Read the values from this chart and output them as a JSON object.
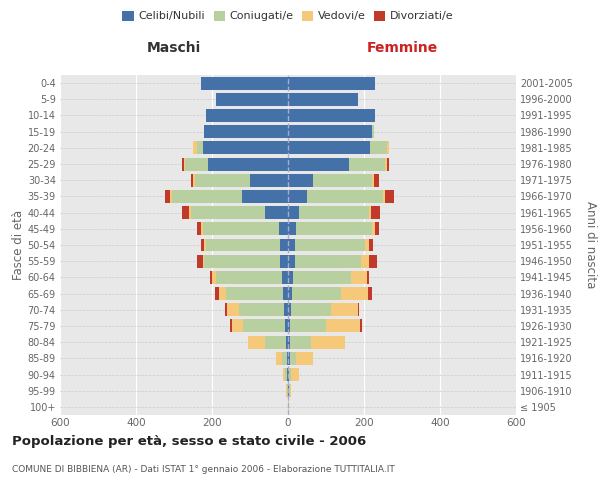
{
  "age_groups": [
    "100+",
    "95-99",
    "90-94",
    "85-89",
    "80-84",
    "75-79",
    "70-74",
    "65-69",
    "60-64",
    "55-59",
    "50-54",
    "45-49",
    "40-44",
    "35-39",
    "30-34",
    "25-29",
    "20-24",
    "15-19",
    "10-14",
    "5-9",
    "0-4"
  ],
  "birth_years": [
    "≤ 1905",
    "1906-1910",
    "1911-1915",
    "1916-1920",
    "1921-1925",
    "1926-1930",
    "1931-1935",
    "1936-1940",
    "1941-1945",
    "1946-1950",
    "1951-1955",
    "1956-1960",
    "1961-1965",
    "1966-1970",
    "1971-1975",
    "1976-1980",
    "1981-1985",
    "1986-1990",
    "1991-1995",
    "1996-2000",
    "2001-2005"
  ],
  "males": {
    "celibi": [
      0,
      1,
      2,
      2,
      5,
      8,
      10,
      12,
      15,
      20,
      20,
      25,
      60,
      120,
      100,
      210,
      225,
      220,
      215,
      190,
      230
    ],
    "coniugati": [
      0,
      2,
      5,
      15,
      55,
      110,
      120,
      150,
      175,
      200,
      195,
      200,
      195,
      185,
      145,
      60,
      15,
      0,
      0,
      0,
      0
    ],
    "vedovi": [
      0,
      1,
      5,
      15,
      45,
      30,
      30,
      20,
      10,
      5,
      5,
      5,
      5,
      5,
      5,
      5,
      10,
      0,
      0,
      0,
      0
    ],
    "divorziati": [
      0,
      0,
      0,
      0,
      0,
      5,
      5,
      10,
      5,
      15,
      10,
      10,
      20,
      15,
      5,
      5,
      0,
      0,
      0,
      0,
      0
    ]
  },
  "females": {
    "nubili": [
      1,
      3,
      3,
      5,
      5,
      5,
      8,
      10,
      12,
      18,
      18,
      22,
      28,
      50,
      65,
      160,
      215,
      220,
      230,
      185,
      230
    ],
    "coniugate": [
      0,
      1,
      5,
      15,
      55,
      95,
      105,
      130,
      155,
      175,
      185,
      200,
      185,
      200,
      155,
      95,
      45,
      5,
      0,
      0,
      0
    ],
    "vedove": [
      1,
      5,
      20,
      45,
      90,
      90,
      70,
      70,
      40,
      20,
      10,
      8,
      5,
      5,
      5,
      5,
      5,
      0,
      0,
      0,
      0
    ],
    "divorziate": [
      0,
      0,
      0,
      0,
      0,
      5,
      5,
      10,
      5,
      20,
      10,
      10,
      25,
      25,
      15,
      5,
      0,
      0,
      0,
      0,
      0
    ]
  },
  "colors": {
    "celibi": "#4472a8",
    "coniugati": "#b8cfa0",
    "vedovi": "#f5c87a",
    "divorziati": "#c0392b"
  },
  "legend_labels": [
    "Celibi/Nubili",
    "Coniugati/e",
    "Vedovi/e",
    "Divorziati/e"
  ],
  "title": "Popolazione per età, sesso e stato civile - 2006",
  "subtitle": "COMUNE DI BIBBIENA (AR) - Dati ISTAT 1° gennaio 2006 - Elaborazione TUTTITALIA.IT",
  "ylabel_left": "Fasce di età",
  "ylabel_right": "Anni di nascita",
  "xlabel_left": "Maschi",
  "xlabel_right": "Femmine",
  "xlim": 600,
  "background_color": "#ffffff",
  "plot_bg": "#e8e8e8"
}
